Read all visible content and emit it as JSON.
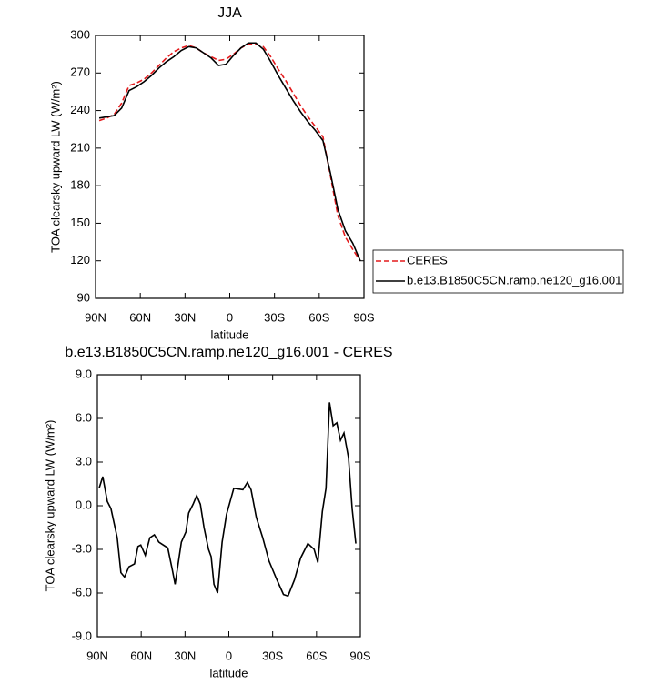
{
  "chart_data": [
    {
      "type": "line",
      "title": "JJA",
      "xlabel": "latitude",
      "ylabel": "TOA clearsky upward LW (W/m²)",
      "x": [
        87.5,
        82.5,
        77.5,
        72.5,
        67.5,
        62.5,
        57.5,
        52.5,
        47.5,
        42.5,
        37.5,
        32.5,
        27.5,
        22.5,
        17.5,
        12.5,
        7.5,
        2.5,
        -2.5,
        -7.5,
        -12.5,
        -17.5,
        -22.5,
        -27.5,
        -32.5,
        -37.5,
        -42.5,
        -47.5,
        -52.5,
        -57.5,
        -62.5,
        -67.5,
        -72.5,
        -77.5,
        -82.5,
        -87.5
      ],
      "series": [
        {
          "name": "CERES",
          "color": "#e41a1c",
          "line_style": "dashed",
          "values": [
            232,
            234,
            237,
            246,
            260,
            262,
            265,
            270,
            276,
            282,
            287,
            290,
            292,
            290,
            286,
            283,
            280,
            281,
            285,
            290,
            293,
            293,
            291,
            283,
            273,
            264,
            254,
            244,
            235,
            227,
            219,
            188,
            156,
            139,
            129,
            120
          ]
        },
        {
          "name": "b.e13.B1850C5CN.ramp.ne120_g16.001",
          "color": "#000000",
          "line_style": "solid",
          "values": [
            234,
            235,
            236,
            242,
            256,
            259,
            263,
            268,
            274,
            279,
            283,
            288,
            291,
            290,
            286,
            282,
            276,
            277,
            284,
            290,
            294,
            294,
            289,
            279,
            268,
            258,
            248,
            239,
            231,
            224,
            216,
            190,
            161,
            144,
            134,
            120
          ]
        }
      ],
      "xlim": [
        90,
        -90
      ],
      "xticks": [
        {
          "value": 90,
          "label": "90N"
        },
        {
          "value": 60,
          "label": "60N"
        },
        {
          "value": 30,
          "label": "30N"
        },
        0,
        {
          "value": -30,
          "label": "30S"
        },
        {
          "value": -60,
          "label": "60S"
        },
        {
          "value": -90,
          "label": "90S"
        }
      ],
      "ylim": [
        90,
        300
      ],
      "yticks": [
        90,
        120,
        150,
        180,
        210,
        240,
        270,
        300
      ],
      "legend": "right"
    },
    {
      "type": "line",
      "title": "b.e13.B1850C5CN.ramp.ne120_g16.001 - CERES",
      "xlabel": "latitude",
      "ylabel": "TOA clearsky upward LW (W/m²)",
      "x": [
        88.8,
        86.3,
        83.2,
        80.7,
        76.4,
        73.9,
        71.4,
        68.4,
        64.6,
        62.2,
        60.3,
        57.2,
        54.1,
        51.0,
        47.9,
        41.8,
        38.7,
        36.8,
        32.5,
        29.4,
        27.5,
        24.5,
        22.0,
        19.5,
        17.0,
        13.9,
        12.1,
        10.2,
        7.7,
        4.6,
        1.6,
        -3.4,
        -9.6,
        -12.7,
        -15.2,
        -18.8,
        -23.2,
        -27.5,
        -32.5,
        -37.4,
        -40.5,
        -44.9,
        -49.1,
        -54.1,
        -58.4,
        -60.9,
        -64.0,
        -66.5,
        -68.9,
        -71.4,
        -73.9,
        -76.4,
        -78.8,
        -81.9,
        -84.4,
        -86.9
      ],
      "series": [
        {
          "color": "#000000",
          "line_style": "solid",
          "values": [
            1.2,
            2.0,
            0.3,
            -0.2,
            -2.2,
            -4.6,
            -4.9,
            -4.2,
            -4.0,
            -2.8,
            -2.7,
            -3.4,
            -2.2,
            -2.0,
            -2.5,
            -2.9,
            -4.4,
            -5.4,
            -2.5,
            -1.8,
            -0.5,
            0.1,
            0.7,
            0.1,
            -1.5,
            -3.0,
            -3.5,
            -5.4,
            -6.0,
            -2.5,
            -0.6,
            1.2,
            1.1,
            1.6,
            1.1,
            -0.8,
            -2.2,
            -3.8,
            -5.0,
            -6.1,
            -6.2,
            -5.1,
            -3.6,
            -2.6,
            -3.0,
            -3.9,
            -0.4,
            1.2,
            7.1,
            5.5,
            5.7,
            4.5,
            5.0,
            3.3,
            -0.2,
            -2.6
          ]
        }
      ],
      "xlim": [
        90,
        -90
      ],
      "xticks": [
        {
          "value": 90,
          "label": "90N"
        },
        {
          "value": 60,
          "label": "60N"
        },
        {
          "value": 30,
          "label": "30N"
        },
        0,
        {
          "value": -30,
          "label": "30S"
        },
        {
          "value": -60,
          "label": "60S"
        },
        {
          "value": -90,
          "label": "90S"
        }
      ],
      "ylim": [
        -9,
        9
      ],
      "yticks": [
        {
          "value": -9,
          "label": "-9.0"
        },
        {
          "value": -6,
          "label": "-6.0"
        },
        {
          "value": -3,
          "label": "-3.0"
        },
        {
          "value": 0,
          "label": "0.0"
        },
        {
          "value": 3,
          "label": "3.0"
        },
        {
          "value": 6,
          "label": "6.0"
        },
        {
          "value": 9,
          "label": "9.0"
        }
      ]
    }
  ]
}
